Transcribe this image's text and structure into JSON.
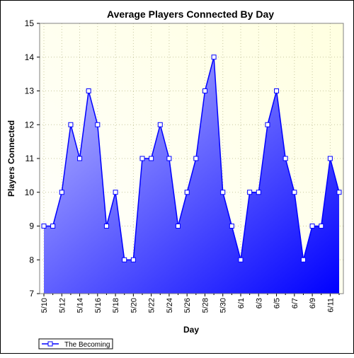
{
  "chart_data": {
    "type": "area",
    "title": "Average Players Connected By Day",
    "xlabel": "Day",
    "ylabel": "Players Connected",
    "ylim": [
      7,
      15
    ],
    "yticks": [
      7,
      8,
      9,
      10,
      11,
      12,
      13,
      14,
      15
    ],
    "grid": true,
    "legend": "bottom-left",
    "categories": [
      "5/10",
      "5/11",
      "5/12",
      "5/13",
      "5/14",
      "5/15",
      "5/16",
      "5/17",
      "5/18",
      "5/19",
      "5/20",
      "5/21",
      "5/22",
      "5/23",
      "5/24",
      "5/25",
      "5/26",
      "5/27",
      "5/28",
      "5/29",
      "5/30",
      "5/31",
      "6/1",
      "6/2",
      "6/3",
      "6/4",
      "6/5",
      "6/6",
      "6/7",
      "6/8",
      "6/9",
      "6/10",
      "6/11",
      "6/12"
    ],
    "tick_labels": [
      "5/10",
      "5/12",
      "5/14",
      "5/16",
      "5/18",
      "5/20",
      "5/22",
      "5/24",
      "5/26",
      "5/28",
      "5/30",
      "6/1",
      "6/3",
      "6/5",
      "6/7",
      "6/9",
      "6/11"
    ],
    "series": [
      {
        "name": "The Becoming",
        "values": [
          9,
          9,
          10,
          12,
          11,
          13,
          12,
          9,
          10,
          8,
          8,
          11,
          11,
          12,
          11,
          9,
          10,
          11,
          13,
          14,
          10,
          9,
          8,
          10,
          10,
          12,
          13,
          11,
          10,
          8,
          9,
          9,
          11,
          10
        ]
      }
    ],
    "colors": {
      "line": "#0000ff",
      "fill_start": "#c0c0ff",
      "fill_end": "#0000ff",
      "plot_bg_start": "#ffffe0",
      "plot_bg_end": "#ffffff",
      "grid": "#c8c8a0"
    }
  }
}
